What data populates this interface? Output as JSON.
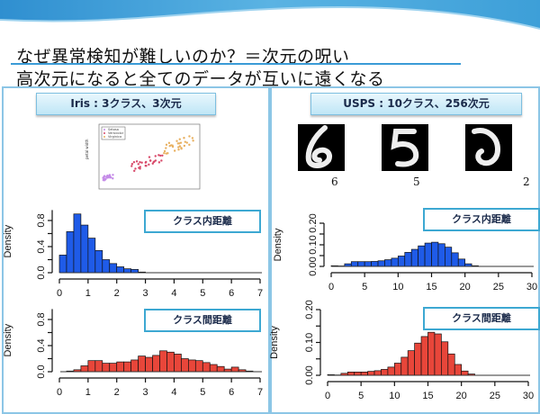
{
  "slide": {
    "title_line1": "なぜ異常検知が難しいのか？＝次元の呪い",
    "title_line2": "高次元になると全てのデータが互いに遠くなる",
    "accent_color": "#3a9bd6"
  },
  "left_panel": {
    "label": "Iris : 3クラス、3次元",
    "scatter": {
      "ylabel": "petal width",
      "legend": [
        "Setosa",
        "Versicolor",
        "Virginica"
      ],
      "legend_colors": [
        "#c58ce8",
        "#d84a6a",
        "#e8b060"
      ],
      "yticks": [
        "0.5",
        "1.0",
        "1.5",
        "2.0",
        "2.5"
      ]
    },
    "intra_label": "クラス内距離",
    "inter_label": "クラス間距離"
  },
  "right_panel": {
    "label": "USPS : 10クラス、256次元",
    "digits": [
      {
        "label": "6"
      },
      {
        "label": "5"
      },
      {
        "label": "2"
      }
    ],
    "intra_label": "クラス内距離",
    "inter_label": "クラス間距離"
  },
  "chart_data": [
    {
      "id": "iris-intra",
      "type": "bar",
      "title": "クラス内距離",
      "xlabel": "",
      "ylabel": "Density",
      "xlim": [
        0,
        7
      ],
      "ylim": [
        0,
        0.9
      ],
      "xticks": [
        0,
        1,
        2,
        3,
        4,
        5,
        6,
        7
      ],
      "yticks": [
        "0.0",
        "0.4",
        "0.8"
      ],
      "bin_width": 0.25,
      "bin_start": 0,
      "values": [
        0.27,
        0.63,
        0.9,
        0.73,
        0.53,
        0.34,
        0.2,
        0.14,
        0.09,
        0.06,
        0.05,
        0.01
      ],
      "color": "#1f5be8"
    },
    {
      "id": "iris-inter",
      "type": "bar",
      "title": "クラス間距離",
      "xlabel": "",
      "ylabel": "Density",
      "xlim": [
        0,
        7
      ],
      "ylim": [
        0,
        0.9
      ],
      "xticks": [
        0,
        1,
        2,
        3,
        4,
        5,
        6,
        7
      ],
      "yticks": [
        "0.0",
        "0.4",
        "0.8"
      ],
      "bin_width": 0.25,
      "bin_start": 0,
      "values": [
        0.0,
        0.01,
        0.03,
        0.09,
        0.17,
        0.17,
        0.13,
        0.13,
        0.15,
        0.15,
        0.18,
        0.24,
        0.22,
        0.25,
        0.32,
        0.3,
        0.27,
        0.2,
        0.18,
        0.17,
        0.14,
        0.11,
        0.08,
        0.04,
        0.07,
        0.03,
        0.01,
        0.0
      ],
      "color": "#e8463a"
    },
    {
      "id": "usps-intra",
      "type": "bar",
      "title": "クラス内距離",
      "xlabel": "",
      "ylabel": "Density",
      "xlim": [
        0,
        30
      ],
      "ylim": [
        0,
        0.2
      ],
      "xticks": [
        0,
        5,
        10,
        15,
        20,
        25,
        30
      ],
      "yticks": [
        "0.00",
        "0.10",
        "0.20"
      ],
      "bin_width": 1,
      "bin_start": 0,
      "values": [
        0.003,
        0.002,
        0.012,
        0.022,
        0.022,
        0.022,
        0.023,
        0.026,
        0.031,
        0.038,
        0.048,
        0.065,
        0.079,
        0.095,
        0.108,
        0.112,
        0.105,
        0.089,
        0.063,
        0.034,
        0.012,
        0.003
      ],
      "color": "#1f5be8"
    },
    {
      "id": "usps-inter",
      "type": "bar",
      "title": "クラス間距離",
      "xlabel": "",
      "ylabel": "Density",
      "xlim": [
        0,
        30
      ],
      "ylim": [
        0,
        0.2
      ],
      "xticks": [
        0,
        5,
        10,
        15,
        20,
        25,
        30
      ],
      "yticks": [
        "0.00",
        "0.10",
        "0.20"
      ],
      "bin_width": 1,
      "bin_start": 0,
      "values": [
        0.002,
        0.001,
        0.006,
        0.01,
        0.01,
        0.01,
        0.012,
        0.014,
        0.018,
        0.025,
        0.037,
        0.055,
        0.075,
        0.098,
        0.118,
        0.131,
        0.126,
        0.102,
        0.065,
        0.033,
        0.013,
        0.004
      ],
      "color": "#e8463a"
    }
  ]
}
